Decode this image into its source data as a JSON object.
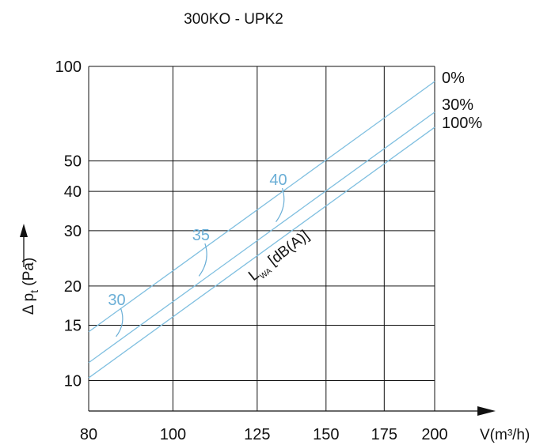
{
  "chart_data": {
    "type": "line",
    "title": "300KO - UPK2",
    "xlabel": "V(m³/h)",
    "ylabel": "Δ pt (Pa)",
    "x_scale": "log",
    "y_scale": "log",
    "xlim": [
      80,
      200
    ],
    "ylim": [
      8,
      100
    ],
    "x_ticks": [
      80,
      100,
      125,
      150,
      175,
      200
    ],
    "y_ticks": [
      10,
      15,
      20,
      30,
      40,
      50,
      100
    ],
    "grid": true,
    "series": [
      {
        "name": "0%",
        "x": [
          80,
          200
        ],
        "y": [
          14.3,
          89.5
        ]
      },
      {
        "name": "30%",
        "x": [
          80,
          200
        ],
        "y": [
          11.4,
          71.5
        ]
      },
      {
        "name": "100%",
        "x": [
          80,
          200
        ],
        "y": [
          10.2,
          64.0
        ]
      }
    ],
    "sound_level_label": "LWA [dB(A)]",
    "sound_level_markers": [
      {
        "label": "30",
        "x": 88,
        "y_from": 16.8,
        "y_to": 13.8
      },
      {
        "label": "35",
        "x": 110,
        "y_from": 27.0,
        "y_to": 21.5
      },
      {
        "label": "40",
        "x": 135,
        "y_from": 40.5,
        "y_to": 32.0
      }
    ],
    "colors": {
      "curves": "#7fbfe0",
      "grid": "#111111",
      "marker_text": "#6aaed6"
    }
  }
}
